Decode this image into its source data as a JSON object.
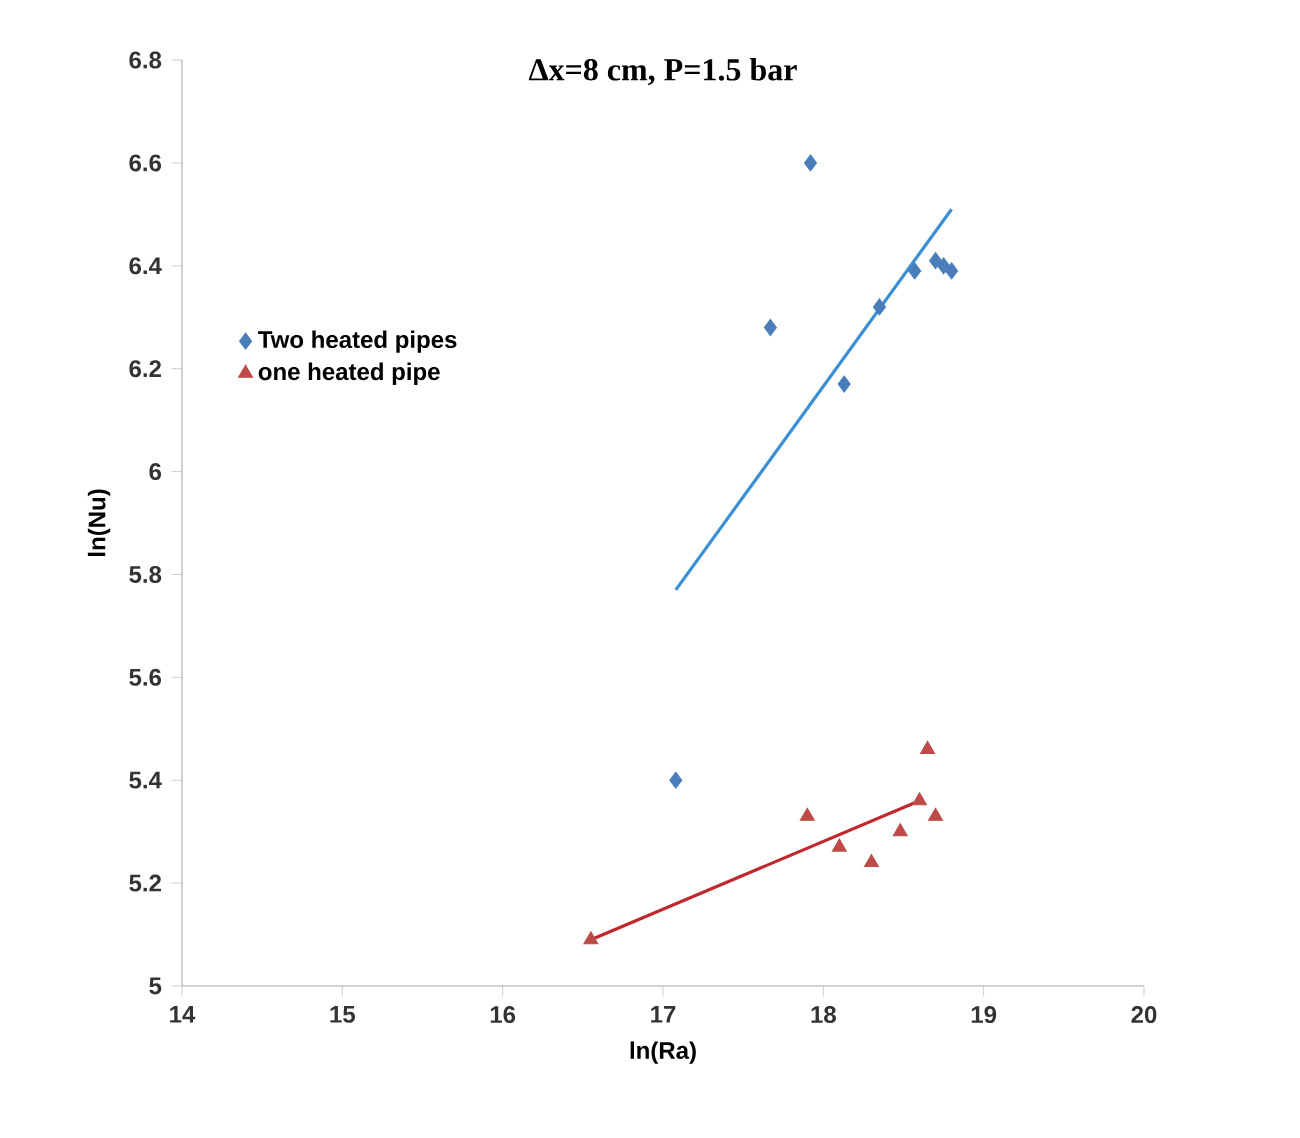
{
  "chart_data": {
    "type": "scatter",
    "title": "Δx=8 cm, P=1.5 bar",
    "xlabel": "ln(Ra)",
    "ylabel": "ln(Nu)",
    "xlim": [
      14,
      20
    ],
    "ylim": [
      5,
      6.8
    ],
    "xticks": [
      14,
      15,
      16,
      17,
      18,
      19,
      20
    ],
    "yticks": [
      5,
      5.2,
      5.4,
      5.6,
      5.8,
      6,
      6.2,
      6.4,
      6.6,
      6.8
    ],
    "grid": false,
    "legend": "left",
    "series": [
      {
        "name": "Two heated pipes",
        "color": "#4a7ebb",
        "marker": "diamond",
        "x": [
          17.08,
          17.67,
          17.92,
          18.13,
          18.35,
          18.57,
          18.7,
          18.75,
          18.8
        ],
        "values": [
          5.4,
          6.28,
          6.6,
          6.17,
          6.32,
          6.39,
          6.41,
          6.4,
          6.39
        ]
      },
      {
        "name": "one heated pipe",
        "color": "#be4b48",
        "marker": "triangle",
        "x": [
          16.55,
          17.9,
          18.1,
          18.3,
          18.48,
          18.6,
          18.65,
          18.7
        ],
        "values": [
          5.09,
          5.33,
          5.27,
          5.24,
          5.3,
          5.36,
          5.46,
          5.33
        ]
      },
      {
        "type": "line",
        "color": "#3c8fd4",
        "marker": "none",
        "x": [
          17.08,
          18.8
        ],
        "values": [
          5.77,
          6.51
        ]
      },
      {
        "type": "line",
        "color": "#c0282d",
        "marker": "none",
        "x": [
          16.55,
          18.6
        ],
        "values": [
          5.09,
          5.36
        ]
      }
    ]
  }
}
